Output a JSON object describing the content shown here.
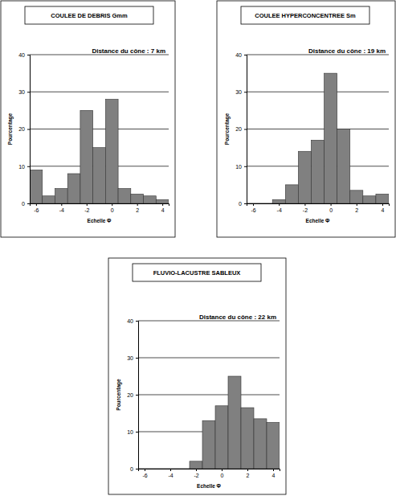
{
  "chart_data": [
    {
      "type": "histogram",
      "title": "COULEE DE DEBRIS Gmm",
      "annotation": "Distance du cône : 7 km",
      "x_label": "Echelle Φ",
      "y_label": "Pourcentage",
      "bins": [
        -6.5,
        -5.5,
        -4.5,
        -3.5,
        -2.5,
        -1.5,
        -0.5,
        0.5,
        1.5,
        2.5,
        3.5,
        4.5
      ],
      "values": [
        9,
        2,
        4,
        8,
        25,
        15,
        28,
        4,
        2.5,
        2,
        1
      ],
      "color": "#808080",
      "xlim": [
        -6.5,
        4.5
      ],
      "xticks": [
        -6,
        -4,
        -2,
        0,
        2,
        4
      ],
      "ylim": [
        0,
        40
      ],
      "yticks": [
        0,
        10,
        20,
        30,
        40
      ],
      "grid": true
    },
    {
      "type": "histogram",
      "title": "COULEE HYPERCONCENTREE Sm",
      "annotation": "Distance du cône : 19 km",
      "x_label": "Echelle Φ",
      "y_label": "Pourcentage",
      "bins": [
        -6.5,
        -5.5,
        -4.5,
        -3.5,
        -2.5,
        -1.5,
        -0.5,
        0.5,
        1.5,
        2.5,
        3.5,
        4.5
      ],
      "values": [
        0,
        0,
        1,
        5,
        14,
        17,
        35,
        20,
        3.5,
        2,
        2.5
      ],
      "color": "#808080",
      "xlim": [
        -6.5,
        4.5
      ],
      "xticks": [
        -6,
        -4,
        -2,
        0,
        2,
        4
      ],
      "ylim": [
        0,
        40
      ],
      "yticks": [
        0,
        10,
        20,
        30,
        40
      ],
      "grid": true
    },
    {
      "type": "histogram",
      "title": "FLUVIO-LACUSTRE SABLEUX",
      "annotation": "Distance du cône : 22 km",
      "x_label": "Echelle Φ",
      "y_label": "Pourcentage",
      "bins": [
        -6.5,
        -5.5,
        -4.5,
        -3.5,
        -2.5,
        -1.5,
        -0.5,
        0.5,
        1.5,
        2.5,
        3.5,
        4.5
      ],
      "values": [
        0,
        0,
        0,
        0,
        2,
        13,
        17,
        25,
        16.5,
        13.5,
        12.5
      ],
      "color": "#808080",
      "xlim": [
        -6.5,
        4.5
      ],
      "xticks": [
        -6,
        -4,
        -2,
        0,
        2,
        4
      ],
      "ylim": [
        0,
        40
      ],
      "yticks": [
        0,
        10,
        20,
        30,
        40
      ],
      "grid": true
    }
  ]
}
